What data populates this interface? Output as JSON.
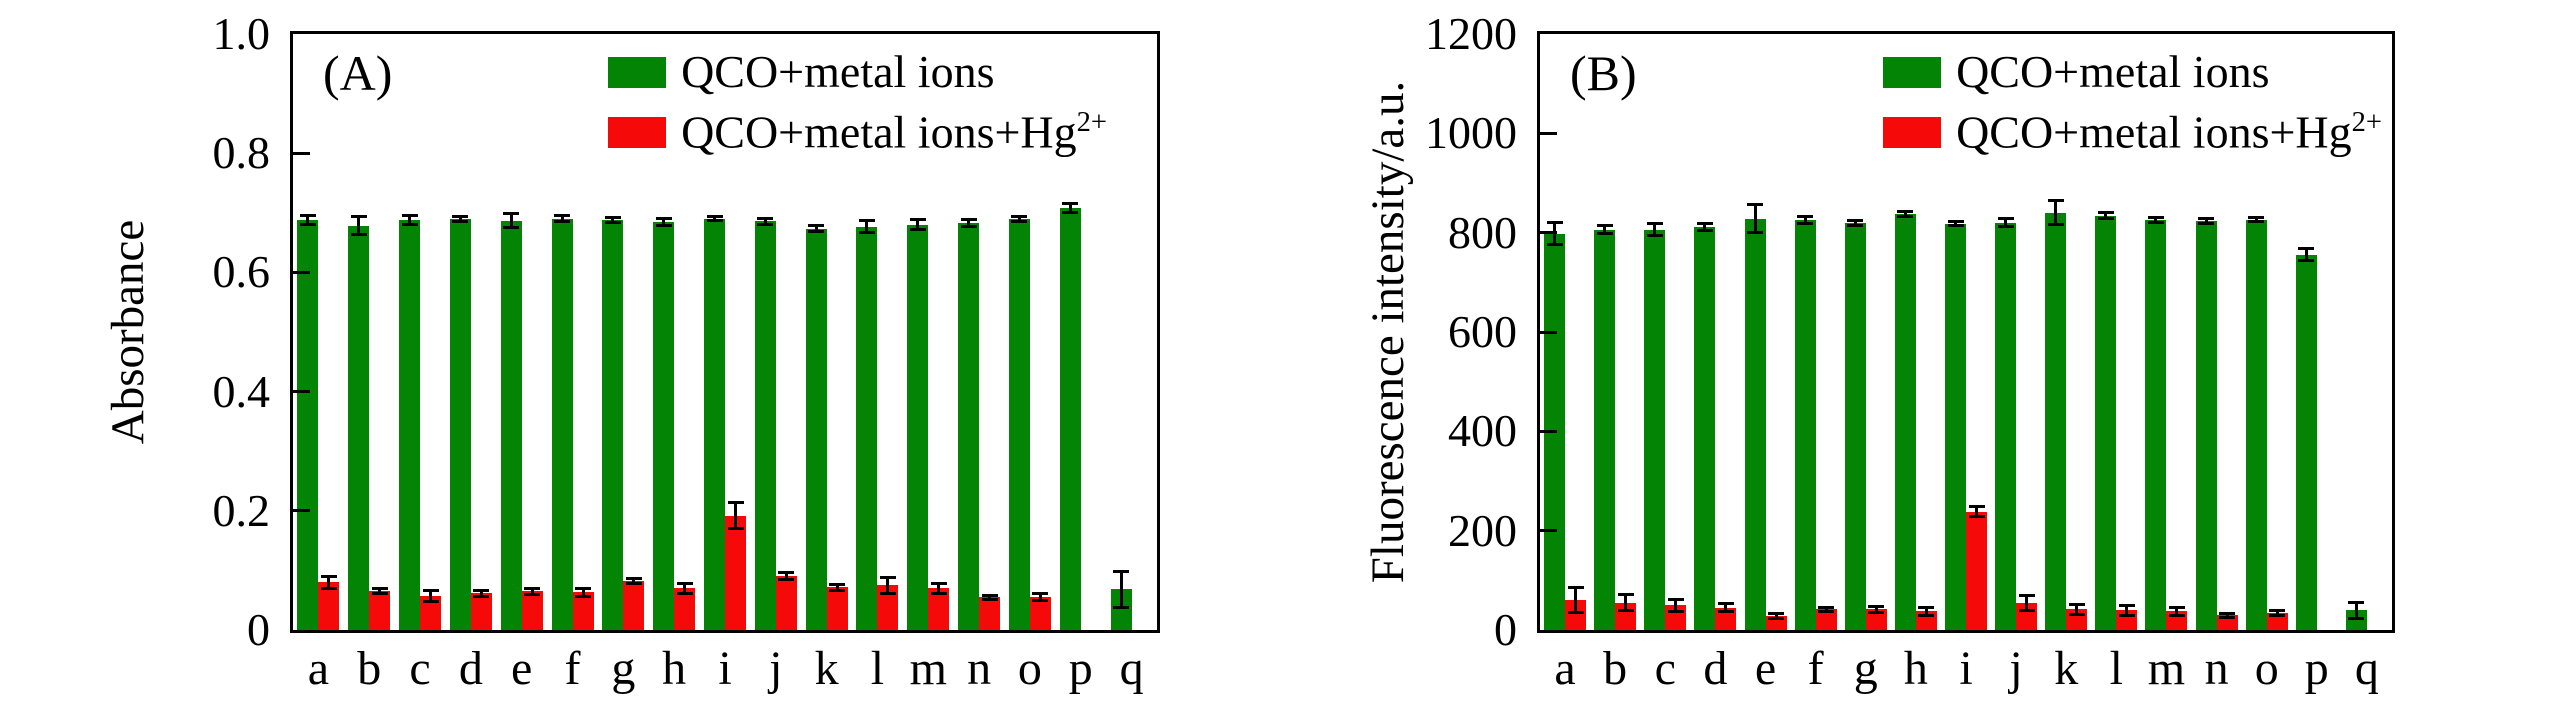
{
  "figure_bg": "#ffffff",
  "axis_color": "#000000",
  "chart_data": [
    {
      "type": "bar",
      "panel_label": "(A)",
      "ylabel": "Absorbance",
      "xlabel": "",
      "ylim": [
        0,
        1.0
      ],
      "yticks": [
        0,
        0.2,
        0.4,
        0.6,
        0.8,
        1.0
      ],
      "ytick_labels": [
        "0",
        "0.2",
        "0.4",
        "0.6",
        "0.8",
        "1.0"
      ],
      "grid": false,
      "legend_position": "top-right",
      "categories": [
        "a",
        "b",
        "c",
        "d",
        "e",
        "f",
        "g",
        "h",
        "i",
        "j",
        "k",
        "l",
        "m",
        "n",
        "o",
        "p",
        "q"
      ],
      "series": [
        {
          "name": "QCO+metal ions",
          "name_sup": "",
          "color": "#048404",
          "values": [
            0.688,
            0.678,
            0.688,
            0.69,
            0.687,
            0.69,
            0.688,
            0.685,
            0.69,
            0.686,
            0.673,
            0.677,
            0.68,
            0.683,
            0.69,
            0.708,
            0.068
          ],
          "errors": [
            0.008,
            0.015,
            0.008,
            0.004,
            0.012,
            0.005,
            0.004,
            0.006,
            0.003,
            0.005,
            0.005,
            0.01,
            0.008,
            0.006,
            0.004,
            0.007,
            0.03
          ]
        },
        {
          "name": "QCO+metal ions+Hg",
          "name_sup": "2+",
          "color": "#f60909",
          "values": [
            0.08,
            0.065,
            0.057,
            0.062,
            0.065,
            0.063,
            0.082,
            0.07,
            0.192,
            0.09,
            0.072,
            0.075,
            0.07,
            0.055,
            0.055,
            null,
            null
          ],
          "errors": [
            0.01,
            0.004,
            0.01,
            0.005,
            0.005,
            0.006,
            0.004,
            0.008,
            0.022,
            0.006,
            0.005,
            0.013,
            0.008,
            0.003,
            0.006,
            null,
            null
          ]
        }
      ]
    },
    {
      "type": "bar",
      "panel_label": "(B)",
      "ylabel": "Fluorescence intensity/a.u.",
      "xlabel": "",
      "ylim": [
        0,
        1200
      ],
      "yticks": [
        0,
        200,
        400,
        600,
        800,
        1000,
        1200
      ],
      "ytick_labels": [
        "0",
        "200",
        "400",
        "600",
        "800",
        "1000",
        "1200"
      ],
      "grid": false,
      "legend_position": "top-right",
      "categories": [
        "a",
        "b",
        "c",
        "d",
        "e",
        "f",
        "g",
        "h",
        "i",
        "j",
        "k",
        "l",
        "m",
        "n",
        "o",
        "p",
        "q"
      ],
      "series": [
        {
          "name": "QCO+metal ions",
          "name_sup": "",
          "color": "#048404",
          "values": [
            798,
            806,
            806,
            812,
            828,
            826,
            820,
            838,
            818,
            820,
            840,
            834,
            826,
            824,
            826,
            756,
            40
          ],
          "errors": [
            22,
            8,
            12,
            7,
            28,
            7,
            5,
            5,
            4,
            8,
            24,
            6,
            5,
            5,
            4,
            12,
            16
          ]
        },
        {
          "name": "QCO+metal ions+Hg",
          "name_sup": "2+",
          "color": "#f60909",
          "values": [
            60,
            55,
            50,
            45,
            28,
            42,
            42,
            38,
            238,
            55,
            42,
            40,
            38,
            30,
            35,
            null,
            null
          ],
          "errors": [
            25,
            16,
            12,
            8,
            5,
            4,
            6,
            8,
            10,
            15,
            10,
            10,
            8,
            4,
            5,
            null,
            null
          ]
        }
      ]
    }
  ]
}
